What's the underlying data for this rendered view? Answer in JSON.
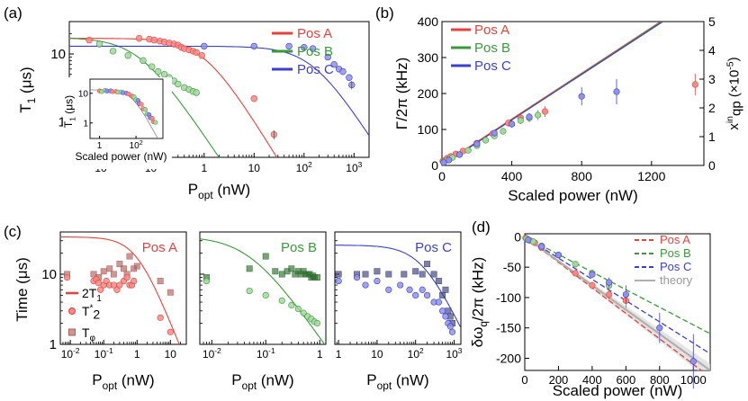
{
  "colors": {
    "A": "#e8413c",
    "B": "#3a9a3a",
    "C": "#3b3fd0",
    "theory": "#b0b0b0",
    "T1_A_pt": "#f28b85",
    "T1_B_pt": "#a6d6a0",
    "T1_C_pt": "#8f92e6"
  },
  "chart_data": [
    {
      "panel": "(a)",
      "type": "scatter",
      "xlabel_main": "P",
      "xlabel_sub": "opt",
      "xlabel_unit": " (nW)",
      "ylabel_main": "T",
      "ylabel_sub": "1",
      "ylabel_unit": " (μs)",
      "xscale": "log",
      "yscale": "log",
      "xlim": [
        0.002,
        2000
      ],
      "ylim": [
        0.3,
        30
      ],
      "xticks": [
        {
          "v": 0.01,
          "b": "10",
          "e": "-2"
        },
        {
          "v": 0.1,
          "b": "10",
          "e": "-1"
        },
        {
          "v": 1,
          "b": "1",
          "e": ""
        },
        {
          "v": 10,
          "b": "10",
          "e": ""
        },
        {
          "v": 100,
          "b": "10",
          "e": "2"
        },
        {
          "v": 1000,
          "b": "10",
          "e": "3"
        }
      ],
      "yticks": [
        {
          "v": 1,
          "t": "1"
        },
        {
          "v": 10,
          "t": "10"
        }
      ],
      "legend": [
        "Pos A",
        "Pos B",
        "Pos C"
      ],
      "legend_position": "top-right",
      "series": [
        {
          "name": "Pos A",
          "x": [
            0.005,
            0.05,
            0.08,
            0.1,
            0.13,
            0.16,
            0.2,
            0.25,
            0.3,
            0.35,
            0.4,
            0.5,
            0.6,
            0.7,
            0.9,
            10,
            25
          ],
          "y": [
            16,
            17,
            16.5,
            16,
            15.5,
            15,
            14.5,
            14,
            13.5,
            12.5,
            12,
            11.5,
            11,
            10.5,
            9.5,
            2.2,
            0.65
          ]
        },
        {
          "name": "Pos B",
          "x": [
            0.008,
            0.015,
            0.03,
            0.06,
            0.09,
            0.12,
            0.16,
            0.2,
            0.25,
            0.3,
            0.4,
            0.5,
            0.6,
            0.7
          ],
          "y": [
            14,
            11,
            9.5,
            8,
            6.5,
            5.5,
            5,
            4.5,
            4,
            3.6,
            3.2,
            3,
            2.8,
            2.7
          ]
        },
        {
          "name": "Pos C",
          "x": [
            1,
            10,
            50,
            100,
            150,
            300,
            400,
            500,
            600,
            800,
            900
          ],
          "y": [
            13,
            13,
            13,
            12.5,
            12,
            9,
            7,
            6,
            5.5,
            4.5,
            3.5
          ]
        }
      ],
      "fits": [
        {
          "name": "Pos A",
          "A": 17,
          "p0": 1,
          "n": 1.2
        },
        {
          "name": "Pos B",
          "A": 17.5,
          "p0": 0.05,
          "n": 1.1
        },
        {
          "name": "Pos C",
          "A": 13,
          "p0": 150,
          "n": 1.15
        }
      ],
      "inset": {
        "xlabel": "Scaled power (nW)",
        "ylabel_main": "T",
        "ylabel_sub": "1",
        "ylabel_unit": " (μs)",
        "xlim": [
          0.3,
          3000
        ],
        "ylim": [
          0.3,
          30
        ],
        "xticks": [
          {
            "v": 1,
            "b": "1",
            "e": ""
          },
          {
            "v": 100,
            "b": "10",
            "e": "2"
          }
        ],
        "yticks": [
          {
            "v": 1,
            "t": "1"
          },
          {
            "v": 10,
            "t": "10"
          }
        ]
      }
    },
    {
      "panel": "(b)",
      "type": "scatter",
      "xlabel": "Scaled power (nW)",
      "ylabel": "Γ/2π (kHz)",
      "ylabel_right_main": "x",
      "ylabel_right_sup": "in",
      "ylabel_right_sub": "qp",
      "ylabel_right_unit": " (×10",
      "ylabel_right_exp": "-5",
      "xlim": [
        0,
        1500
      ],
      "ylim": [
        0,
        400
      ],
      "ylim_right": [
        0,
        5
      ],
      "xticks": [
        0,
        400,
        800,
        1200
      ],
      "yticks": [
        0,
        100,
        200,
        300,
        400
      ],
      "yticks_right": [
        0,
        1,
        2,
        3,
        4,
        5
      ],
      "legend": [
        "Pos A",
        "Pos B",
        "Pos C"
      ],
      "legend_position": "top-left",
      "series": [
        {
          "name": "Pos A",
          "x": [
            5,
            15,
            30,
            50,
            80,
            120,
            200,
            290,
            380,
            450,
            590,
            1450
          ],
          "y": [
            12,
            14,
            20,
            25,
            32,
            40,
            62,
            88,
            118,
            132,
            150,
            225
          ],
          "err": [
            2,
            2,
            3,
            3,
            4,
            4,
            5,
            8,
            10,
            12,
            15,
            30
          ]
        },
        {
          "name": "Pos B",
          "x": [
            10,
            30,
            60,
            100,
            150,
            200,
            250,
            300,
            350,
            400,
            450,
            500,
            550
          ],
          "y": [
            10,
            15,
            22,
            30,
            42,
            55,
            70,
            82,
            95,
            115,
            125,
            132,
            140
          ],
          "err": [
            2,
            2,
            3,
            3,
            4,
            4,
            5,
            6,
            8,
            10,
            10,
            12,
            14
          ]
        },
        {
          "name": "Pos C",
          "x": [
            10,
            40,
            100,
            200,
            300,
            400,
            500,
            800,
            1000
          ],
          "y": [
            8,
            15,
            30,
            60,
            90,
            115,
            135,
            192,
            205
          ],
          "err": [
            2,
            3,
            3,
            5,
            6,
            8,
            10,
            25,
            35
          ]
        }
      ],
      "fits": [
        {
          "name": "Pos A",
          "slope": 0.318,
          "intercept": 2
        },
        {
          "name": "Pos B",
          "slope": 0.318,
          "intercept": 0
        },
        {
          "name": "Pos C",
          "slope": 0.316,
          "intercept": 0
        }
      ]
    },
    {
      "panel": "(c)",
      "type": "scatter",
      "ylabel": "Time (μs)",
      "xlabel_main": "P",
      "xlabel_sub": "opt",
      "xlabel_unit": " (nW)",
      "yscale": "log",
      "ylim": [
        1,
        40
      ],
      "yticks": [
        {
          "v": 1,
          "t": "1"
        },
        {
          "v": 10,
          "t": "10"
        }
      ],
      "legend": [
        "2T",
        "T",
        "T"
      ],
      "legend_subs": [
        "1",
        "2",
        "φ"
      ],
      "legend_sups": [
        "",
        "*",
        ""
      ],
      "subpanels": [
        {
          "name": "Pos A",
          "xlim": [
            0.005,
            30
          ],
          "xticks": [
            {
              "v": 0.01,
              "b": "10",
              "e": "-2"
            },
            {
              "v": 0.1,
              "b": "10",
              "e": "-1"
            },
            {
              "v": 1,
              "b": "1",
              "e": ""
            },
            {
              "v": 10,
              "b": "10",
              "e": ""
            }
          ],
          "fit": {
            "A": 34,
            "p0": 1,
            "n": 1.2
          },
          "T2": {
            "x": [
              0.008,
              0.05,
              0.06,
              0.07,
              0.08,
              0.1,
              0.12,
              0.15,
              0.2,
              0.25,
              0.3,
              0.4,
              0.5,
              0.6,
              0.7,
              0.8,
              5,
              10
            ],
            "y": [
              9,
              8,
              8.5,
              7.5,
              6,
              7,
              8,
              7,
              7,
              6,
              7,
              8,
              9,
              7,
              7,
              8,
              2.4,
              1.5
            ]
          },
          "Tphi": {
            "x": [
              0.008,
              0.05,
              0.07,
              0.1,
              0.15,
              0.2,
              0.3,
              0.4,
              0.5,
              0.6,
              0.8,
              1,
              5,
              10
            ],
            "y": [
              10,
              10,
              9,
              11,
              12,
              10,
              14,
              12,
              10,
              18,
              12,
              13,
              8,
              5.5
            ]
          }
        },
        {
          "name": "Pos B",
          "xlim": [
            0.006,
            1.3
          ],
          "xticks": [
            {
              "v": 0.01,
              "b": "10",
              "e": "-2"
            },
            {
              "v": 0.1,
              "b": "10",
              "e": "-1"
            },
            {
              "v": 1,
              "b": "1",
              "e": ""
            }
          ],
          "fit": {
            "A": 35,
            "p0": 0.05,
            "n": 1.1
          },
          "T2": {
            "x": [
              0.008,
              0.05,
              0.1,
              0.2,
              0.3,
              0.4,
              0.5,
              0.6,
              0.7,
              0.8,
              0.9
            ],
            "y": [
              8,
              5.8,
              5,
              4.2,
              3.6,
              3.2,
              2.8,
              2.5,
              2.3,
              2.1,
              2
            ]
          },
          "Tphi": {
            "x": [
              0.008,
              0.05,
              0.1,
              0.15,
              0.2,
              0.25,
              0.3,
              0.35,
              0.4,
              0.45,
              0.5,
              0.55,
              0.6,
              0.65,
              0.7,
              0.75,
              0.8,
              0.9
            ],
            "y": [
              9,
              12,
              18,
              11,
              10,
              11,
              12,
              10,
              11,
              10,
              11,
              10,
              10,
              10,
              9,
              9.5,
              9,
              9
            ]
          }
        },
        {
          "name": "Pos C",
          "xlim": [
            0.8,
            1500
          ],
          "xticks": [
            {
              "v": 1,
              "b": "1",
              "e": ""
            },
            {
              "v": 10,
              "b": "10",
              "e": ""
            },
            {
              "v": 100,
              "b": "10",
              "e": "2"
            },
            {
              "v": 1000,
              "b": "10",
              "e": "3"
            }
          ],
          "fit": {
            "A": 26,
            "p0": 150,
            "n": 1.15
          },
          "T2": {
            "x": [
              1,
              3,
              5,
              10,
              20,
              40,
              70,
              100,
              150,
              200,
              300,
              400,
              500,
              600,
              700,
              800,
              900
            ],
            "y": [
              8,
              9,
              7,
              8,
              6,
              7,
              6,
              5,
              6,
              5,
              4,
              4,
              3,
              2.5,
              2,
              1.8,
              1.5
            ]
          },
          "Tphi": {
            "x": [
              1,
              3,
              5,
              10,
              20,
              50,
              100,
              150,
              200,
              300,
              400,
              500,
              600,
              700,
              800,
              900
            ],
            "y": [
              10,
              10,
              10,
              11,
              10,
              10,
              11,
              10,
              14,
              10,
              8,
              5,
              6,
              3,
              2.5,
              2
            ]
          }
        }
      ]
    },
    {
      "panel": "(d)",
      "type": "line",
      "xlabel": "Scaled power (nW)",
      "ylabel_main": "δω",
      "ylabel_sub": "q",
      "ylabel_unit": "/2π (kHz)",
      "xlim": [
        0,
        1100
      ],
      "ylim": [
        -220,
        5
      ],
      "xticks": [
        0,
        200,
        400,
        600,
        800,
        1000
      ],
      "yticks": [
        0,
        -50,
        -100,
        -150,
        -200
      ],
      "legend": [
        "Pos A",
        "Pos B",
        "Pos C",
        "theory"
      ],
      "legend_position": "top-right",
      "series": [
        {
          "name": "Pos A",
          "x": [
            5,
            30,
            60,
            100,
            300,
            400,
            500,
            600
          ],
          "y": [
            -2,
            -6,
            -10,
            -18,
            -60,
            -80,
            -95,
            -105
          ],
          "err": [
            2,
            2,
            3,
            3,
            5,
            6,
            8,
            12
          ]
        },
        {
          "name": "Pos B",
          "x": [
            10,
            50,
            100,
            200,
            300,
            400,
            500
          ],
          "y": [
            -3,
            -8,
            -15,
            -30,
            -45,
            -60,
            -80
          ],
          "err": [
            2,
            3,
            3,
            4,
            5,
            6,
            8
          ]
        },
        {
          "name": "Pos C",
          "x": [
            20,
            100,
            200,
            400,
            500,
            600,
            800,
            1000
          ],
          "y": [
            -5,
            -16,
            -30,
            -62,
            -75,
            -95,
            -150,
            -205
          ],
          "err": [
            2,
            3,
            4,
            6,
            8,
            15,
            25,
            45
          ]
        }
      ],
      "fits": [
        {
          "name": "Pos A",
          "slope": -0.21
        },
        {
          "name": "Pos B",
          "slope": -0.145
        },
        {
          "name": "Pos C",
          "slope": -0.175
        },
        {
          "name": "theory",
          "slope": -0.2
        }
      ]
    }
  ]
}
